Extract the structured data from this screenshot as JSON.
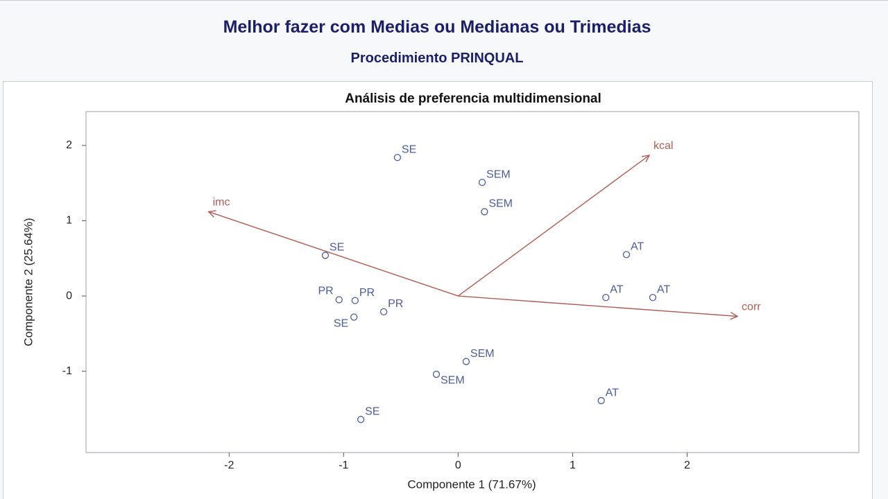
{
  "header": {
    "title": "Melhor fazer com Medias ou Medianas ou Trimedias",
    "subtitle": "Procedimiento PRINQUAL"
  },
  "chart_data": {
    "type": "scatter",
    "title": "Análisis de preferencia multidimensional",
    "xlabel": "Componente 1 (71.67%)",
    "ylabel": "Componente 2 (25.64%)",
    "xlim": [
      -3.25,
      3.5
    ],
    "ylim": [
      -2.08,
      2.45
    ],
    "xticks": [
      -2,
      -1,
      0,
      1,
      2
    ],
    "yticks": [
      -1,
      0,
      1,
      2
    ],
    "points": {
      "color": "#4b5c9e",
      "labels": [
        "SE",
        "SEM",
        "SEM",
        "SE",
        "AT",
        "AT",
        "AT",
        "PR",
        "PR",
        "PR",
        "SE",
        "SEM",
        "SEM",
        "AT",
        "SE"
      ],
      "x": [
        -0.53,
        0.21,
        0.23,
        -1.16,
        1.47,
        1.29,
        1.7,
        -1.04,
        -0.9,
        -0.65,
        -0.91,
        0.07,
        -0.19,
        1.25,
        -0.85
      ],
      "y": [
        1.84,
        1.51,
        1.12,
        0.54,
        0.55,
        -0.02,
        -0.02,
        -0.05,
        -0.06,
        -0.21,
        -0.28,
        -0.87,
        -1.04,
        -1.39,
        -1.64
      ]
    },
    "vectors": {
      "color": "#b25a52",
      "labels": [
        "imc",
        "kcal",
        "corr"
      ],
      "x": [
        -2.18,
        1.67,
        2.44
      ],
      "y": [
        1.12,
        1.87,
        -0.27
      ]
    }
  }
}
